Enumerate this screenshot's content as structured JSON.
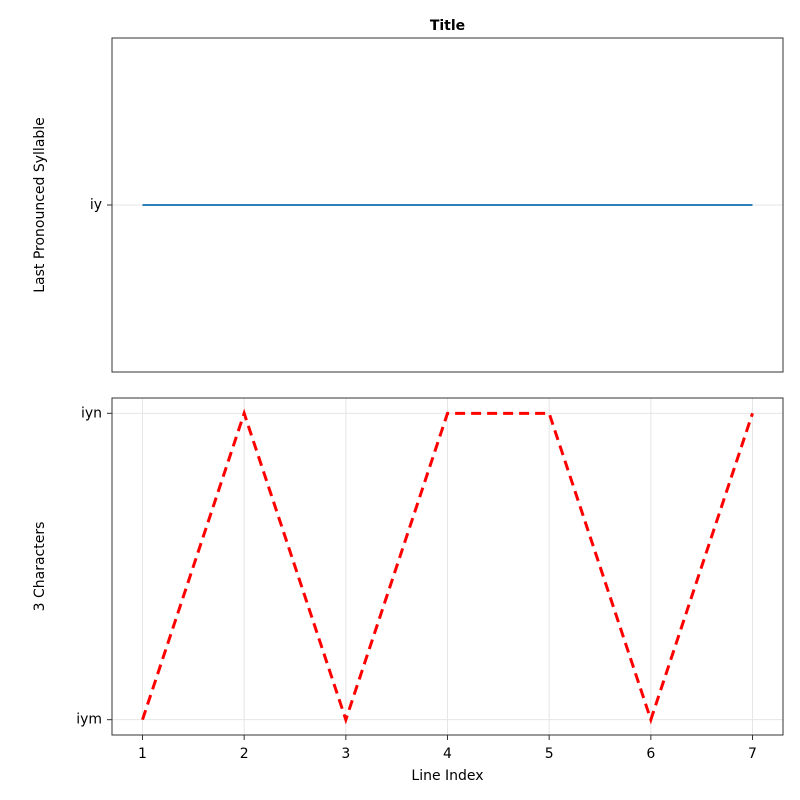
{
  "chart_data": [
    {
      "type": "line",
      "title": "Title",
      "ylabel": "Last Pronounced Syllable",
      "x": [
        1,
        2,
        3,
        4,
        5,
        6,
        7
      ],
      "series": [
        {
          "color": "#2c7fb8",
          "linestyle": "solid",
          "values": [
            1,
            1,
            1,
            1,
            1,
            1,
            1
          ]
        }
      ],
      "xlim": [
        0.7,
        7.3
      ],
      "ylim": [
        0,
        2
      ],
      "yticks": [
        {
          "value": 1,
          "label": "iy"
        }
      ],
      "xgrid": false,
      "ygrid": true
    },
    {
      "type": "line",
      "ylabel": "3 Characters",
      "xlabel": "Line Index",
      "x": [
        1,
        2,
        3,
        4,
        5,
        6,
        7
      ],
      "series": [
        {
          "color": "#ff0000",
          "linestyle": "dashed",
          "values": [
            0,
            1,
            0,
            1,
            1,
            0,
            1
          ]
        }
      ],
      "xlim": [
        0.7,
        7.3
      ],
      "ylim": [
        -0.05,
        1.05
      ],
      "xticks": [
        1,
        2,
        3,
        4,
        5,
        6,
        7
      ],
      "yticks": [
        {
          "value": 0,
          "label": "iym"
        },
        {
          "value": 1,
          "label": "iyn"
        }
      ],
      "xgrid": true,
      "ygrid": true
    }
  ]
}
